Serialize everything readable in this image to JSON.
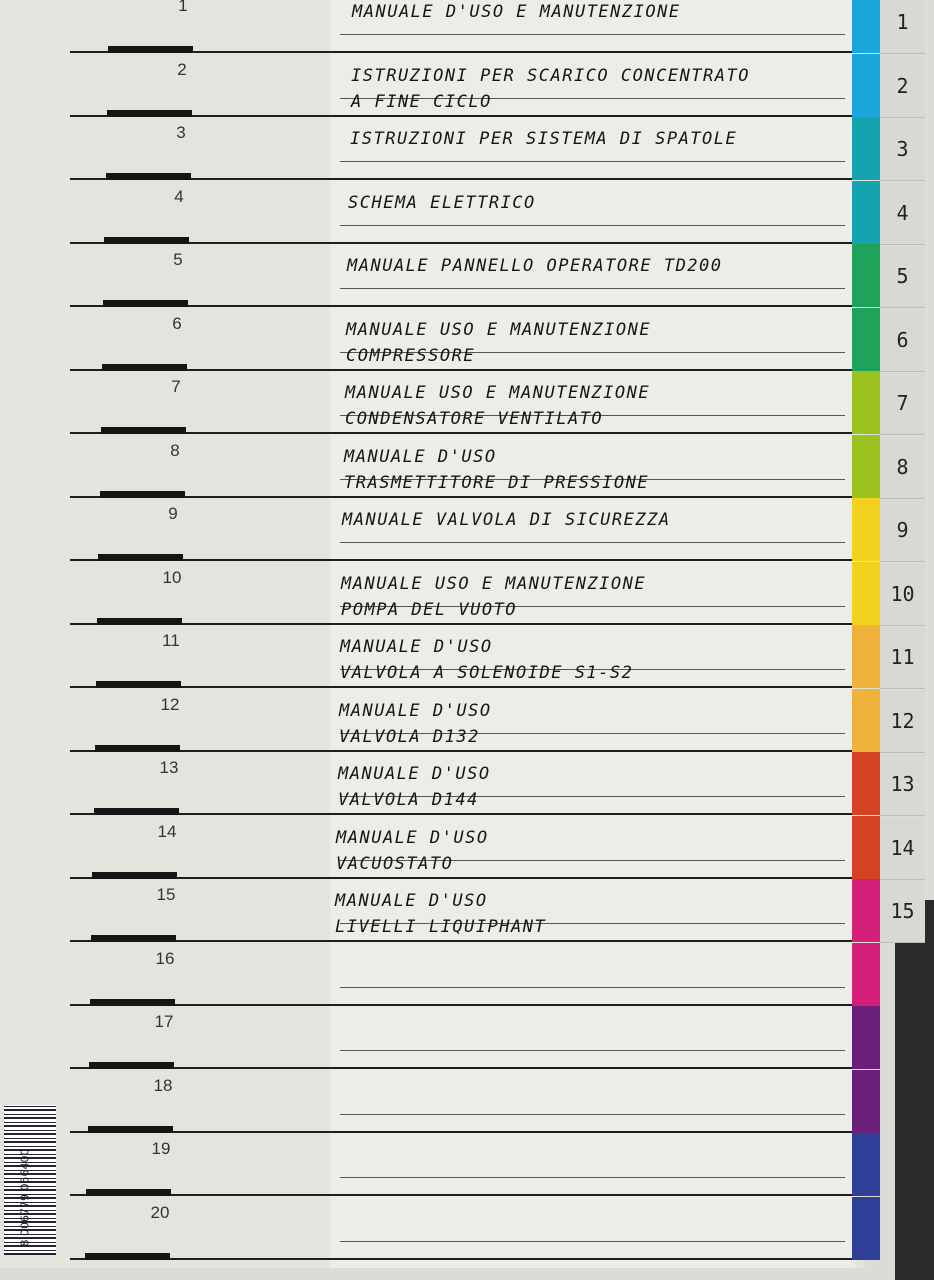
{
  "entries": [
    {
      "number": "1",
      "lines": [
        "MANUALE D'USO E MANUTENZIONE"
      ],
      "tab_label": "1",
      "color": "#1aa6dc"
    },
    {
      "number": "2",
      "lines": [
        "ISTRUZIONI PER SCARICO CONCENTRATO",
        "A FINE CICLO"
      ],
      "tab_label": "2",
      "color": "#1aa6dc"
    },
    {
      "number": "3",
      "lines": [
        "ISTRUZIONI PER SISTEMA DI SPATOLE"
      ],
      "tab_label": "3",
      "color": "#16a3b0"
    },
    {
      "number": "4",
      "lines": [
        "SCHEMA ELETTRICO"
      ],
      "tab_label": "4",
      "color": "#16a3b0"
    },
    {
      "number": "5",
      "lines": [
        "MANUALE PANNELLO OPERATORE TD200"
      ],
      "tab_label": "5",
      "color": "#1fa35a"
    },
    {
      "number": "6",
      "lines": [
        "MANUALE USO E MANUTENZIONE",
        "COMPRESSORE"
      ],
      "tab_label": "6",
      "color": "#1fa35a"
    },
    {
      "number": "7",
      "lines": [
        "MANUALE USO E MANUTENZIONE",
        "CONDENSATORE VENTILATO"
      ],
      "tab_label": "7",
      "color": "#9bc21e"
    },
    {
      "number": "8",
      "lines": [
        "MANUALE D'USO",
        "TRASMETTITORE DI PRESSIONE"
      ],
      "tab_label": "8",
      "color": "#9bc21e"
    },
    {
      "number": "9",
      "lines": [
        "MANUALE VALVOLA DI SICUREZZA"
      ],
      "tab_label": "9",
      "color": "#f2d21c"
    },
    {
      "number": "10",
      "lines": [
        "MANUALE USO E MANUTENZIONE",
        "POMPA DEL VUOTO"
      ],
      "tab_label": "10",
      "color": "#f2d21c"
    },
    {
      "number": "11",
      "lines": [
        "MANUALE D'USO",
        "VALVOLA A SOLENOIDE S1-S2"
      ],
      "tab_label": "11",
      "color": "#f0b23a"
    },
    {
      "number": "12",
      "lines": [
        "MANUALE D'USO",
        "VALVOLA D132"
      ],
      "tab_label": "12",
      "color": "#f0b23a"
    },
    {
      "number": "13",
      "lines": [
        "MANUALE D'USO",
        "VALVOLA D144"
      ],
      "tab_label": "13",
      "color": "#d44223"
    },
    {
      "number": "14",
      "lines": [
        "MANUALE D'USO",
        "VACUOSTATO"
      ],
      "tab_label": "14",
      "color": "#d44223"
    },
    {
      "number": "15",
      "lines": [
        "MANUALE D'USO",
        "LIVELLI LIQUIPHANT"
      ],
      "tab_label": "15",
      "color": "#d41f78"
    },
    {
      "number": "16",
      "lines": [],
      "tab_label": "",
      "color": "#d41f78"
    },
    {
      "number": "17",
      "lines": [],
      "tab_label": "",
      "color": "#6a1f7a"
    },
    {
      "number": "18",
      "lines": [],
      "tab_label": "",
      "color": "#6a1f7a"
    },
    {
      "number": "19",
      "lines": [],
      "tab_label": "",
      "color": "#2f3f98"
    },
    {
      "number": "20",
      "lines": [],
      "tab_label": "",
      "color": "#2f3f98"
    }
  ],
  "barcode": {
    "digits": "8 006779 056400"
  }
}
